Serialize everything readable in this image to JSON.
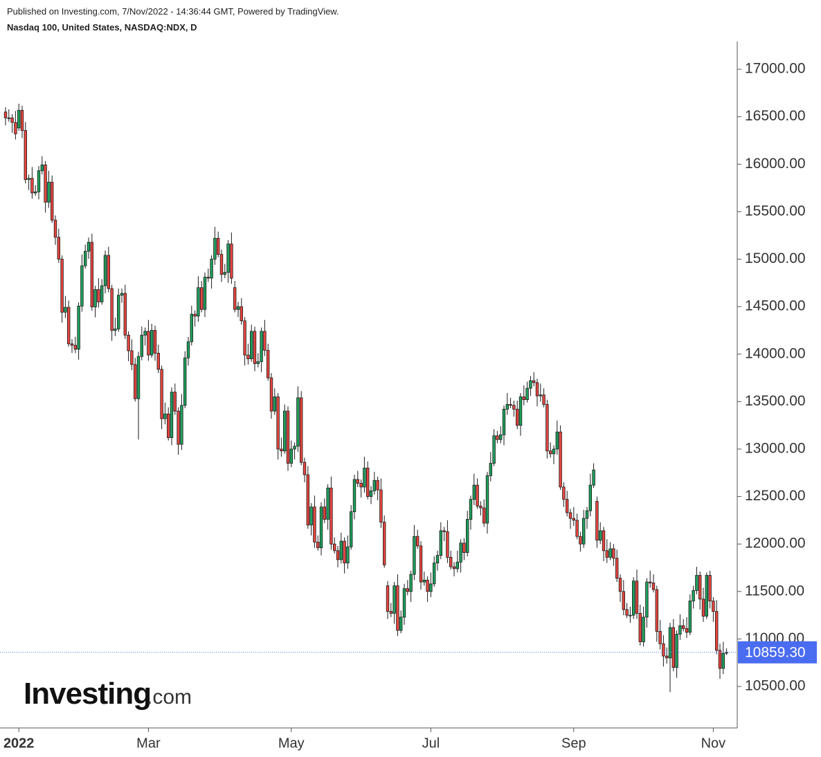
{
  "chart_data": {
    "type": "candlestick",
    "published": "Published on Investing.com, 7/Nov/2022 - 14:36:44 GMT, Powered by TradingView.",
    "title": "Nasdaq 100, United States, NASDAQ:NDX, D",
    "logo": "Investing",
    "logo_suffix": ".com",
    "up_color": "#1ea05c",
    "down_color": "#e8453f",
    "ylim": [
      10063,
      17292
    ],
    "yticks": [
      {
        "value": 10500,
        "label": "10500.00"
      },
      {
        "value": 11000,
        "label": "11000.00"
      },
      {
        "value": 11500,
        "label": "11500.00"
      },
      {
        "value": 12000,
        "label": "12000.00"
      },
      {
        "value": 12500,
        "label": "12500.00"
      },
      {
        "value": 13000,
        "label": "13000.00"
      },
      {
        "value": 13500,
        "label": "13500.00"
      },
      {
        "value": 14000,
        "label": "14000.00"
      },
      {
        "value": 14500,
        "label": "14500.00"
      },
      {
        "value": 15000,
        "label": "15000.00"
      },
      {
        "value": 15500,
        "label": "15500.00"
      },
      {
        "value": 16000,
        "label": "16000.00"
      },
      {
        "value": 16500,
        "label": "16500.00"
      },
      {
        "value": 17000,
        "label": "17000.00"
      }
    ],
    "xlabels": [
      "2022",
      "Mar",
      "May",
      "Jul",
      "Sep",
      "Nov"
    ],
    "last_price": {
      "value": 10859.3,
      "label": "10859.30"
    },
    "open": [
      16550,
      16488,
      16487,
      16440,
      16382,
      16567,
      16355,
      15838,
      15851,
      15697,
      15709,
      15931,
      15993,
      15600,
      15811,
      15411,
      15231,
      15000,
      14441,
      14493,
      14108,
      14093,
      14051,
      14506,
      14930,
      15083,
      15178,
      14497,
      14680,
      14550,
      14720,
      15040,
      14690,
      14250,
      14265,
      14620,
      14640,
      14200,
      14035,
      13890,
      13530,
      13975,
      14200,
      14240,
      13990,
      14250,
      14010,
      13840,
      13320,
      13370,
      13120,
      13600,
      13400,
      13050,
      13460,
      13960,
      14130,
      14420,
      14400,
      14700,
      14470,
      14810,
      14800,
      15000,
      15220,
      15050,
      14840,
      14860,
      15160,
      14700,
      14470,
      14500,
      14350,
      13990,
      13950,
      14240,
      13900,
      13920,
      14240,
      14040,
      13750,
      13400,
      13550,
      13000,
      12980,
      13400,
      12850,
      13000,
      13030,
      13540,
      12860,
      12730,
      12200,
      12390,
      12020,
      11960,
      12390,
      12260,
      12590,
      12000,
      11930,
      11835,
      12030,
      11800,
      11970,
      12340,
      12680,
      12640,
      12600,
      12800,
      12500,
      12560,
      12670,
      12570,
      12230,
      11560,
      11290,
      11270,
      11560,
      11090,
      11230,
      11530,
      11500,
      11680,
      12080,
      11980,
      11600,
      11620,
      11500,
      11580,
      11800,
      11880,
      12140,
      12130,
      11860,
      11760,
      11740,
      11810,
      12010,
      11910,
      12260,
      12470,
      12620,
      12400,
      12380,
      12220,
      12720,
      12850,
      13140,
      13100,
      13150,
      13420,
      13470,
      13460,
      13420,
      13250,
      13550,
      13520,
      13640,
      13720,
      13700,
      13560,
      13570,
      13470,
      12980,
      12950,
      13000,
      13180,
      12600,
      12470,
      12330,
      12270,
      12250,
      12080,
      12000,
      12270,
      12350,
      12620,
      12450,
      12040,
      12140,
      11930,
      11860,
      11950,
      11850,
      11640,
      11500,
      11310,
      11250,
      11250,
      11610,
      11270,
      10970,
      11230,
      11600,
      11590,
      11520,
      11080,
      10950,
      10820,
      10800,
      11120,
      10700,
      11050,
      11140,
      11110,
      11070,
      11400,
      11510,
      11670,
      11420,
      11240,
      11670,
      11400,
      11290,
      10880,
      10690,
      10850
    ],
    "high": [
      16600,
      16578,
      16527,
      16560,
      16637,
      16617,
      16445,
      15891,
      15971,
      15779,
      15981,
      16083,
      16033,
      15931,
      15881,
      15461,
      15321,
      15040,
      14613,
      14563,
      14158,
      14183,
      14546,
      15050,
      15153,
      15228,
      15268,
      14720,
      14800,
      14790,
      15090,
      15130,
      14730,
      14385,
      14690,
      14690,
      14730,
      14240,
      14155,
      13960,
      14025,
      14290,
      14280,
      14360,
      14320,
      14300,
      14100,
      13880,
      13490,
      13440,
      13650,
      13690,
      13440,
      13580,
      14030,
      14180,
      14510,
      14460,
      14820,
      14770,
      14860,
      14900,
      15040,
      15340,
      15290,
      15100,
      14950,
      15200,
      15280,
      14770,
      14550,
      14590,
      14390,
      14110,
      14310,
      14290,
      14010,
      14280,
      14360,
      14110,
      13800,
      13640,
      13590,
      13120,
      13470,
      13450,
      13090,
      13070,
      13660,
      13610,
      12910,
      12820,
      12430,
      12510,
      12090,
      12440,
      12480,
      12630,
      12710,
      12070,
      11980,
      12120,
      12070,
      12090,
      12410,
      12730,
      12770,
      12680,
      12920,
      12870,
      12610,
      12760,
      12710,
      12690,
      12300,
      11610,
      11380,
      11600,
      11680,
      11300,
      11580,
      11620,
      11720,
      12200,
      12150,
      12030,
      11710,
      11660,
      11700,
      11870,
      11930,
      12230,
      12180,
      12250,
      11930,
      11810,
      11930,
      12050,
      12060,
      12350,
      12510,
      12740,
      12690,
      12450,
      12470,
      12760,
      12970,
      13210,
      13190,
      13240,
      13460,
      13590,
      13540,
      13510,
      13510,
      13590,
      13670,
      13710,
      13770,
      13810,
      13740,
      13690,
      13640,
      13520,
      13070,
      13040,
      13300,
      13250,
      12650,
      12560,
      12370,
      12390,
      12320,
      12130,
      12360,
      12390,
      12740,
      12850,
      12500,
      12230,
      12180,
      12050,
      12020,
      12000,
      11940,
      11680,
      11620,
      11380,
      11340,
      11650,
      11730,
      11360,
      11340,
      11640,
      11720,
      11680,
      11560,
      11200,
      11040,
      10910,
      11170,
      11210,
      11090,
      11260,
      11210,
      11230,
      11470,
      11560,
      11760,
      11710,
      11540,
      11700,
      11720,
      11440,
      11410,
      10950,
      10970,
      10900
    ],
    "low": [
      16408,
      16447,
      16330,
      16260,
      16352,
      16275,
      15798,
      15728,
      15637,
      15667,
      15629,
      15891,
      15490,
      15540,
      15381,
      15151,
      14960,
      14331,
      14381,
      14078,
      14013,
      14011,
      13941,
      14446,
      14900,
      15003,
      14457,
      14387,
      14490,
      14520,
      14640,
      14650,
      14140,
      14190,
      14235,
      14540,
      14160,
      13925,
      13830,
      13500,
      13100,
      13935,
      14090,
      13930,
      13960,
      13930,
      13800,
      13210,
      13260,
      13090,
      13040,
      13360,
      12940,
      12990,
      13430,
      13880,
      14090,
      14290,
      14340,
      14440,
      14390,
      14760,
      14690,
      14940,
      15020,
      14760,
      14800,
      14750,
      14740,
      14440,
      14390,
      14310,
      13880,
      13890,
      13920,
      13820,
      13860,
      13810,
      13980,
      13720,
      13320,
      13360,
      12890,
      12920,
      12950,
      12770,
      12810,
      12890,
      12970,
      12830,
      12650,
      12160,
      12090,
      11960,
      11930,
      11880,
      12220,
      12150,
      11940,
      11900,
      11755,
      11795,
      11690,
      11740,
      11940,
      12260,
      12600,
      12490,
      12540,
      12470,
      12420,
      12520,
      12460,
      12170,
      11750,
      11210,
      11230,
      11160,
      11030,
      11060,
      11150,
      11460,
      11390,
      11620,
      11950,
      11520,
      11560,
      11390,
      11440,
      11550,
      11720,
      11840,
      12030,
      11800,
      11730,
      11660,
      11700,
      11700,
      11830,
      11870,
      12150,
      12410,
      12370,
      12300,
      12180,
      12110,
      12660,
      12820,
      13060,
      13060,
      13040,
      13360,
      13430,
      13340,
      13210,
      13140,
      13460,
      13490,
      13560,
      13660,
      13450,
      13500,
      13440,
      12900,
      12910,
      12840,
      12940,
      12570,
      12390,
      12290,
      12160,
      12190,
      12050,
      11920,
      11960,
      12160,
      12290,
      12590,
      11960,
      12000,
      11820,
      11800,
      11830,
      11770,
      11600,
      11390,
      11250,
      11220,
      11170,
      11210,
      11210,
      10930,
      10920,
      11120,
      11540,
      11490,
      10970,
      10890,
      10710,
      10740,
      10440,
      10660,
      10590,
      10990,
      11080,
      11010,
      11040,
      11320,
      11470,
      11310,
      11180,
      11210,
      11320,
      11180,
      10840,
      10580,
      10630,
      10830
    ],
    "close": [
      16488,
      16487,
      16440,
      16320,
      16567,
      16355,
      15838,
      15851,
      15697,
      15709,
      15931,
      15993,
      15600,
      15811,
      15411,
      15231,
      15000,
      14441,
      14493,
      14108,
      14093,
      14051,
      14506,
      14930,
      15083,
      15178,
      14497,
      14680,
      14550,
      14720,
      15040,
      14690,
      14250,
      14265,
      14620,
      14640,
      14200,
      14035,
      13890,
      13530,
      13975,
      14200,
      14240,
      13990,
      14250,
      14010,
      13840,
      13320,
      13370,
      13120,
      13600,
      13400,
      13050,
      13460,
      13960,
      14130,
      14420,
      14400,
      14700,
      14470,
      14810,
      14800,
      15000,
      15220,
      15050,
      14840,
      14860,
      15160,
      14800,
      14470,
      14500,
      14350,
      13990,
      13950,
      14240,
      13900,
      13920,
      14240,
      14040,
      13750,
      13400,
      13550,
      13000,
      12980,
      13400,
      12850,
      13000,
      13030,
      13540,
      12860,
      12730,
      12200,
      12390,
      12020,
      11960,
      12390,
      12260,
      12590,
      12000,
      11930,
      11835,
      12030,
      11800,
      11970,
      12340,
      12680,
      12640,
      12600,
      12800,
      12500,
      12560,
      12670,
      12570,
      12230,
      11780,
      11290,
      11270,
      11560,
      11090,
      11230,
      11530,
      11500,
      11680,
      12080,
      11980,
      11600,
      11620,
      11500,
      11580,
      11800,
      11880,
      12140,
      12130,
      11860,
      11760,
      11740,
      11810,
      12010,
      11910,
      12260,
      12470,
      12620,
      12400,
      12380,
      12220,
      12720,
      12850,
      13140,
      13100,
      13150,
      13420,
      13470,
      13460,
      13420,
      13250,
      13550,
      13520,
      13640,
      13720,
      13700,
      13560,
      13570,
      13470,
      12980,
      12950,
      13000,
      13180,
      12600,
      12470,
      12330,
      12270,
      12250,
      12080,
      12000,
      12270,
      12350,
      12620,
      12780,
      12040,
      12140,
      11930,
      11860,
      11950,
      11850,
      11640,
      11500,
      11310,
      11250,
      11250,
      11610,
      11270,
      10970,
      11230,
      11600,
      11590,
      11520,
      11080,
      10950,
      10820,
      10800,
      11120,
      10700,
      11050,
      11140,
      11110,
      11070,
      11400,
      11510,
      11670,
      11420,
      11240,
      11670,
      11400,
      11290,
      10880,
      10690,
      10850,
      10859.3
    ]
  }
}
